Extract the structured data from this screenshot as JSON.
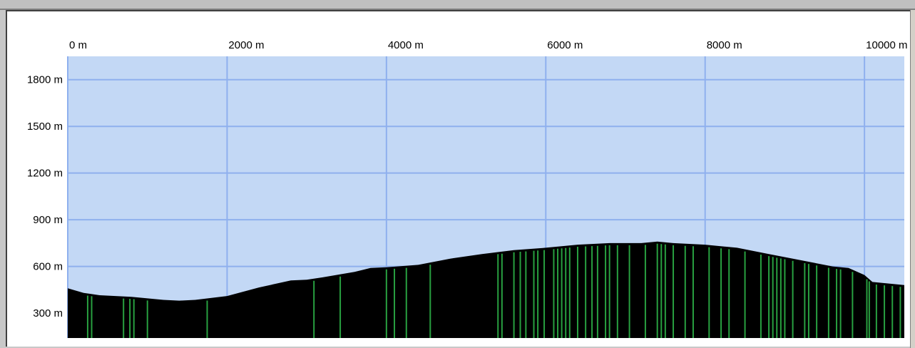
{
  "chart_data": {
    "type": "area",
    "title": "",
    "xlabel": "",
    "ylabel": "",
    "x_unit": "m",
    "y_unit": "m",
    "xlim": [
      0,
      10500
    ],
    "ylim": [
      140,
      1950
    ],
    "x_ticks": [
      "0 m",
      "2000 m",
      "4000 m",
      "6000 m",
      "8000 m",
      "10000 m"
    ],
    "x_tick_values": [
      0,
      2000,
      4000,
      6000,
      8000,
      10000
    ],
    "y_ticks": [
      "1800 m",
      "1500 m",
      "1200 m",
      "900 m",
      "600 m",
      "300 m"
    ],
    "y_tick_values": [
      1800,
      1500,
      1200,
      900,
      600,
      300
    ],
    "grid": true,
    "colors": {
      "sky": "#c3d8f5",
      "grid": "#8fb0ee",
      "terrain": "#000000",
      "markers": "#28a040"
    },
    "series": [
      {
        "x": [
          0,
          200,
          400,
          800,
          1200,
          1400,
          1600,
          2000,
          2400,
          2800,
          3000,
          3200,
          3600,
          3800,
          4000,
          4400,
          4800,
          5200,
          5600,
          6000,
          6400,
          6800,
          7200,
          7400,
          7600,
          8000,
          8400,
          8800,
          9200,
          9600,
          9800,
          10000,
          10100,
          10500
        ],
        "y": [
          460,
          430,
          415,
          405,
          385,
          380,
          385,
          410,
          465,
          510,
          515,
          530,
          565,
          590,
          595,
          610,
          650,
          680,
          705,
          720,
          740,
          750,
          750,
          760,
          750,
          740,
          720,
          680,
          640,
          600,
          590,
          545,
          500,
          480
        ]
      }
    ],
    "marker_x": [
      250,
      300,
      700,
      780,
      830,
      1000,
      1750,
      3090,
      3420,
      4000,
      4100,
      4250,
      4550,
      5400,
      5450,
      5600,
      5680,
      5750,
      5850,
      5900,
      5980,
      6100,
      6150,
      6200,
      6250,
      6300,
      6400,
      6500,
      6580,
      6650,
      6750,
      6800,
      6900,
      7050,
      7250,
      7400,
      7450,
      7500,
      7600,
      7750,
      7850,
      8050,
      8200,
      8300,
      8500,
      8700,
      8800,
      8850,
      8900,
      8950,
      9000,
      9100,
      9250,
      9300,
      9400,
      9550,
      9650,
      9700,
      9850,
      10030,
      10060,
      10150,
      10250,
      10350,
      10450
    ]
  }
}
